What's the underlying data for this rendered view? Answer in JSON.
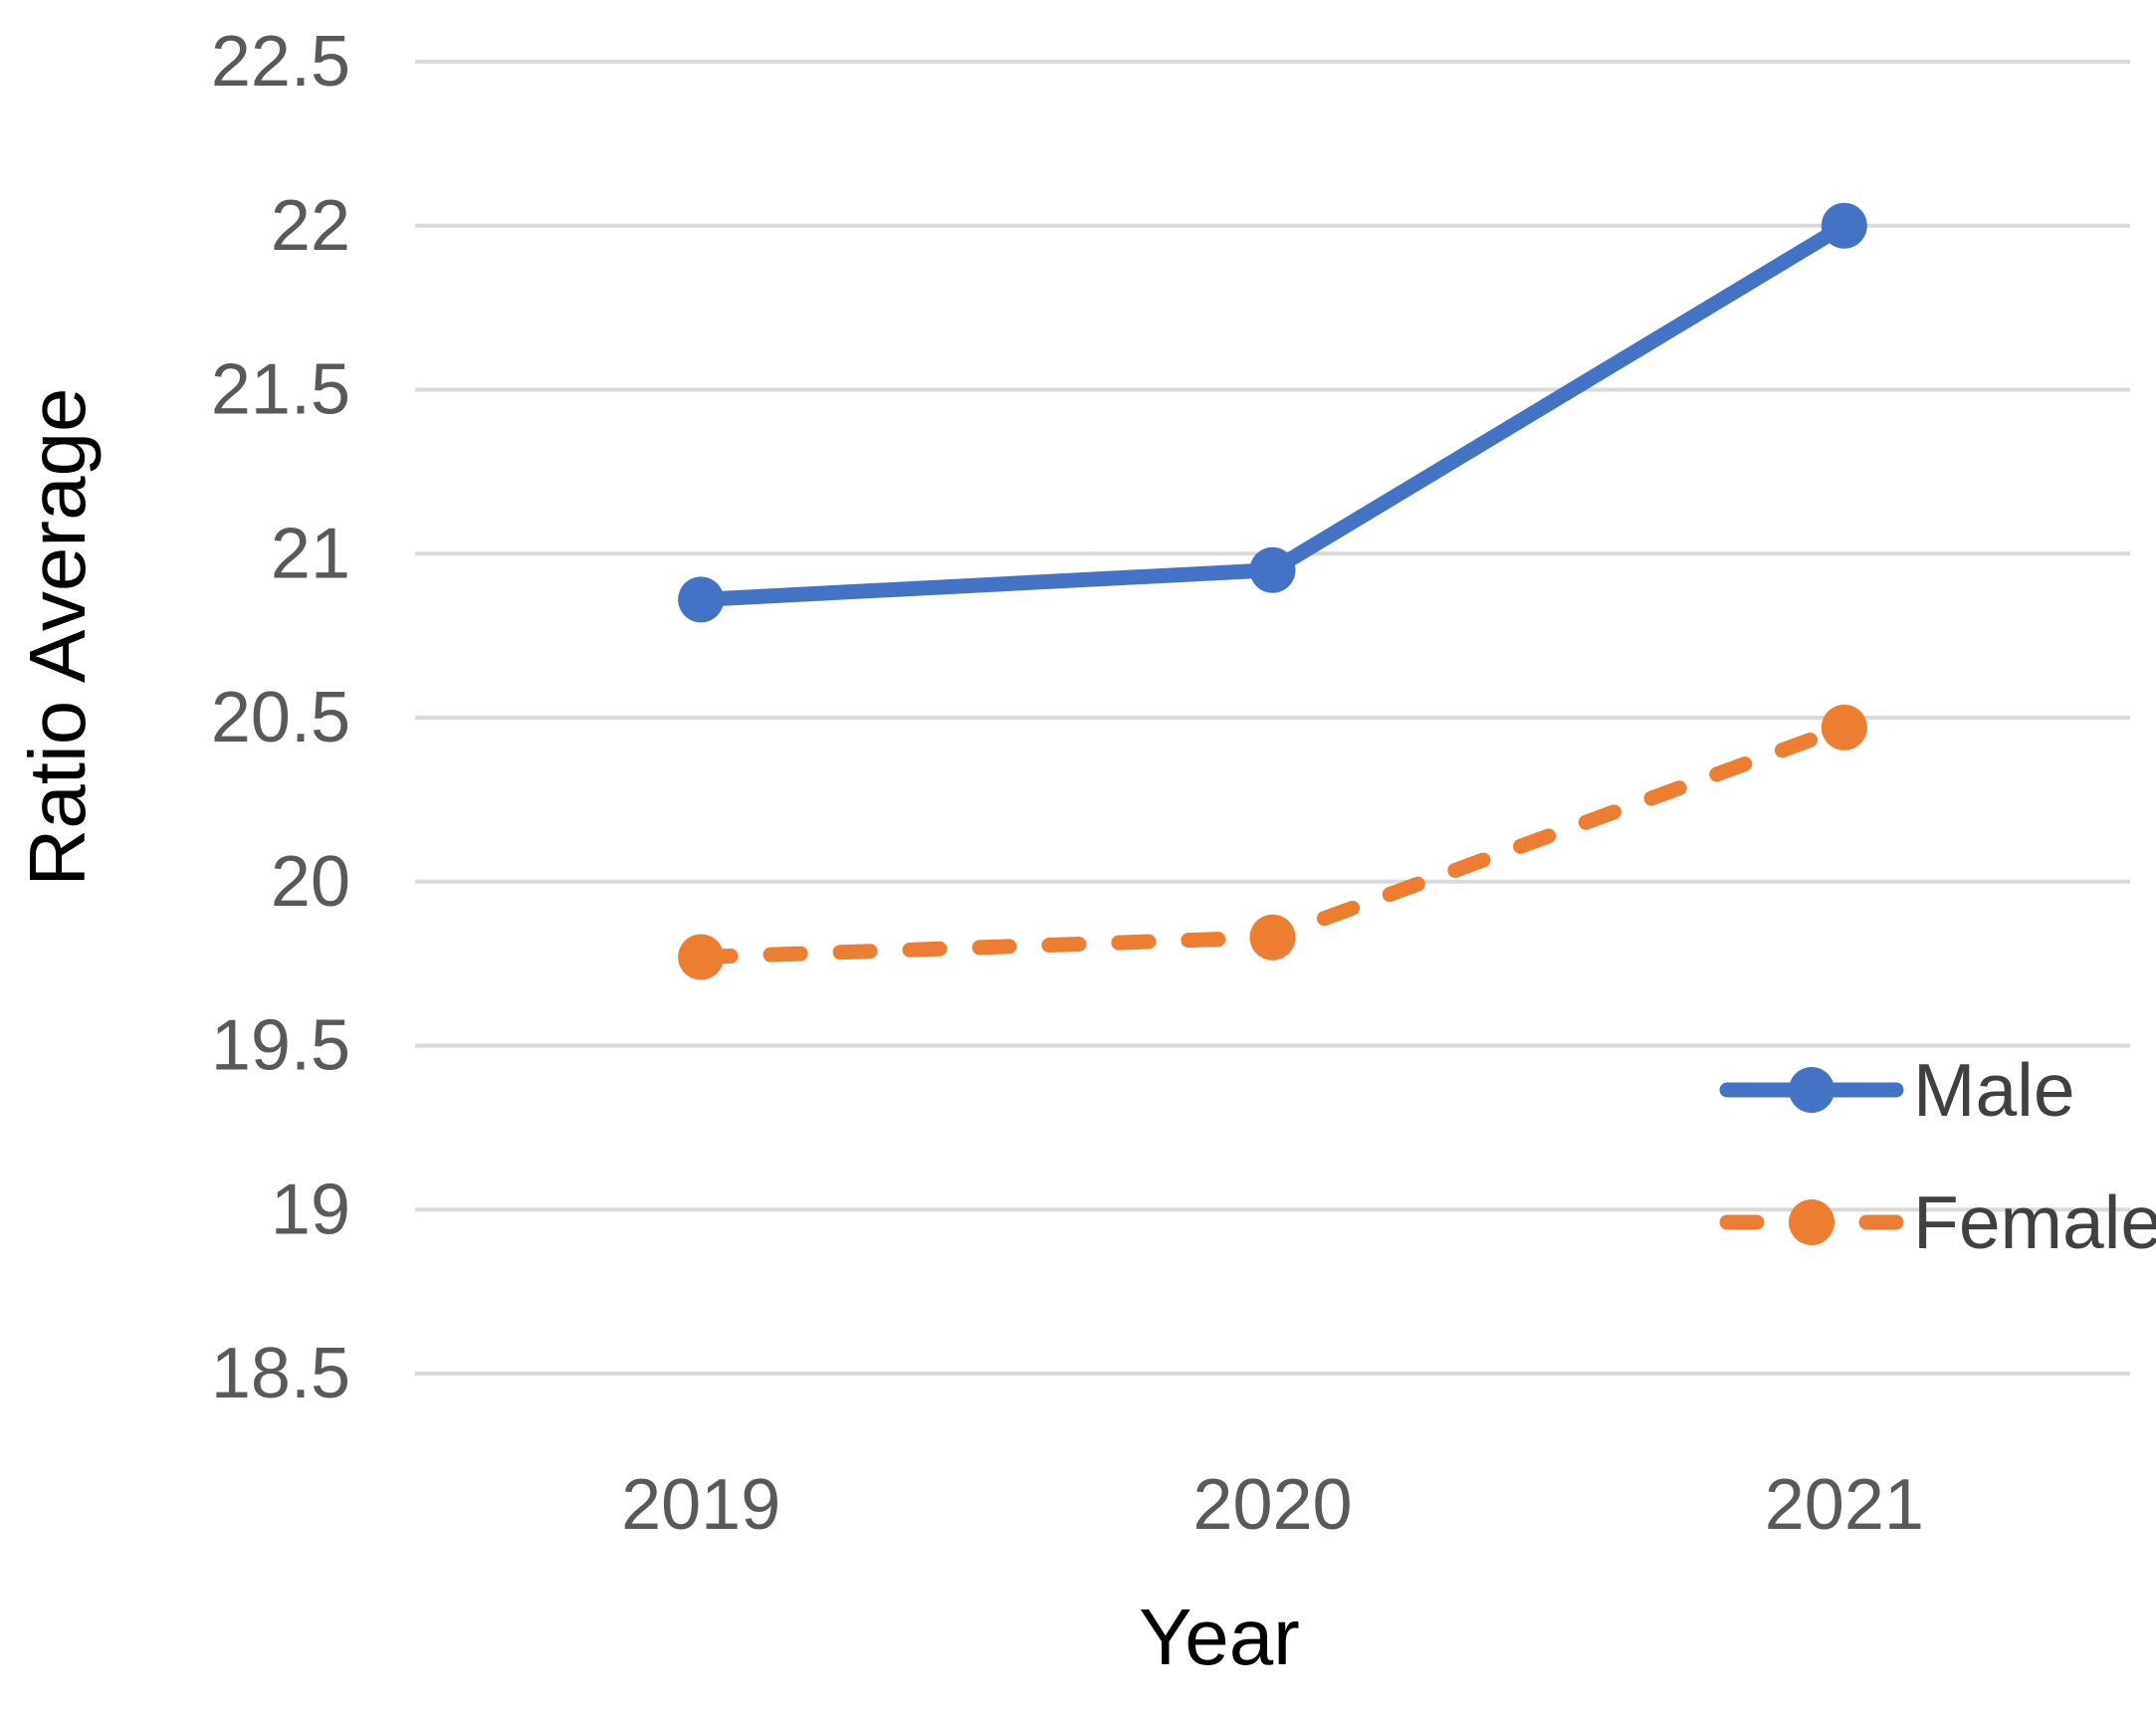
{
  "chart_data": {
    "type": "line",
    "title": "",
    "xlabel": "Year",
    "ylabel": "Ratio Average",
    "x": [
      "2019",
      "2020",
      "2021"
    ],
    "series": [
      {
        "name": "Male",
        "values": [
          20.86,
          20.95,
          22.0
        ],
        "color": "#4472C4",
        "line_style": "solid",
        "marker": "circle"
      },
      {
        "name": "Female",
        "values": [
          19.77,
          19.83,
          20.47
        ],
        "color": "#ED7D31",
        "line_style": "dashed",
        "marker": "circle"
      }
    ],
    "ylim": [
      18.5,
      22.5
    ],
    "ytick_step": 0.5,
    "yticks": [
      22.5,
      22,
      21.5,
      21,
      20.5,
      20,
      19.5,
      19,
      18.5
    ],
    "ytick_labels": [
      "22.5",
      "22",
      "21.5",
      "21",
      "20.5",
      "20",
      "19.5",
      "19",
      "18.5"
    ],
    "grid": "horizontal",
    "legend_position": "inside-bottom-right",
    "colors": {
      "background": "#FFFFFF",
      "gridline": "#D9D9D9",
      "tick_label": "#595959",
      "axis_title": "#000000",
      "legend_text": "#404040"
    }
  }
}
